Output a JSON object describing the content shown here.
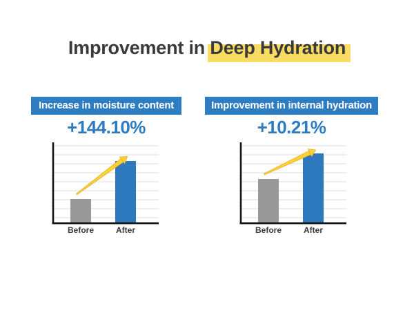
{
  "title": {
    "prefix": "Improvement in",
    "highlight": "Deep Hydration"
  },
  "colors": {
    "background": "#ffffff",
    "title_text": "#3a3a3a",
    "highlight_yellow": "#f8dc63",
    "banner_blue": "#2e7dc2",
    "banner_text": "#ffffff",
    "percent_blue": "#2d7cc1",
    "bar_gray": "#999999",
    "bar_blue": "#2e78bd",
    "gridline": "#dddddd",
    "axis_black": "#141414",
    "arrow_fill": "#ffd32f",
    "arrow_outline": "#e8a93c",
    "category_label": "#3a3a3a"
  },
  "chart_data": [
    {
      "type": "bar",
      "title": "Increase in moisture content",
      "change_label": "+144.10%",
      "categories": [
        "Before",
        "After"
      ],
      "values": [
        0.3,
        0.78
      ],
      "value_scale": "relative bar height 0-1 of plot area (no numeric axis labels shown)",
      "bar_colors": [
        "#999999",
        "#2e78bd"
      ],
      "grid": true,
      "legend": "none",
      "annotation": "tapered yellow arrow rising from top of Before bar to top of After bar"
    },
    {
      "type": "bar",
      "title": "Improvement in internal hydration",
      "change_label": "+10.21%",
      "categories": [
        "Before",
        "After"
      ],
      "values": [
        0.55,
        0.87
      ],
      "value_scale": "relative bar height 0-1 of plot area (no numeric axis labels shown)",
      "bar_colors": [
        "#999999",
        "#2e78bd"
      ],
      "grid": true,
      "legend": "none",
      "annotation": "tapered yellow arrow rising from top of Before bar to top of After bar"
    }
  ]
}
